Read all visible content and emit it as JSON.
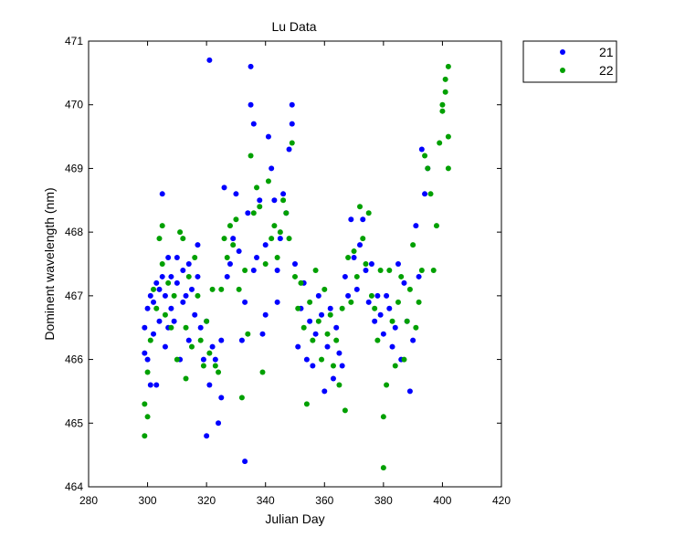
{
  "chart_data": {
    "type": "scatter",
    "title": "Lu Data",
    "xlabel": "Julian Day",
    "ylabel": "Dominent wavelength (nm)",
    "xlim": [
      280,
      420
    ],
    "ylim": [
      464,
      471
    ],
    "xticks": [
      280,
      300,
      320,
      340,
      360,
      380,
      400,
      420
    ],
    "yticks": [
      464,
      465,
      466,
      467,
      468,
      469,
      470,
      471
    ],
    "grid": false,
    "legend_position": "outside-top-right",
    "series": [
      {
        "name": "21",
        "color": "#0000ff",
        "points": [
          [
            299,
            466.1
          ],
          [
            299,
            466.5
          ],
          [
            300,
            466.8
          ],
          [
            300,
            466.0
          ],
          [
            301,
            465.6
          ],
          [
            301,
            467.0
          ],
          [
            302,
            466.9
          ],
          [
            302,
            466.4
          ],
          [
            303,
            467.2
          ],
          [
            303,
            465.6
          ],
          [
            304,
            466.6
          ],
          [
            304,
            467.1
          ],
          [
            305,
            468.6
          ],
          [
            305,
            467.3
          ],
          [
            306,
            467.0
          ],
          [
            306,
            466.2
          ],
          [
            307,
            467.6
          ],
          [
            307,
            466.5
          ],
          [
            308,
            467.3
          ],
          [
            308,
            466.8
          ],
          [
            309,
            466.6
          ],
          [
            310,
            467.6
          ],
          [
            310,
            467.2
          ],
          [
            311,
            466.0
          ],
          [
            312,
            467.4
          ],
          [
            312,
            466.9
          ],
          [
            313,
            467.0
          ],
          [
            314,
            467.5
          ],
          [
            314,
            466.3
          ],
          [
            315,
            467.1
          ],
          [
            316,
            466.7
          ],
          [
            317,
            467.8
          ],
          [
            317,
            467.3
          ],
          [
            318,
            466.5
          ],
          [
            319,
            466.0
          ],
          [
            320,
            464.8
          ],
          [
            320,
            466.6
          ],
          [
            321,
            470.7
          ],
          [
            321,
            465.6
          ],
          [
            322,
            466.2
          ],
          [
            323,
            466.0
          ],
          [
            324,
            465.0
          ],
          [
            325,
            466.3
          ],
          [
            325,
            465.4
          ],
          [
            326,
            468.7
          ],
          [
            327,
            467.3
          ],
          [
            328,
            467.5
          ],
          [
            329,
            467.9
          ],
          [
            330,
            468.6
          ],
          [
            331,
            467.7
          ],
          [
            332,
            466.3
          ],
          [
            333,
            464.4
          ],
          [
            333,
            466.9
          ],
          [
            334,
            468.3
          ],
          [
            335,
            470.6
          ],
          [
            335,
            470.0
          ],
          [
            336,
            469.7
          ],
          [
            336,
            467.4
          ],
          [
            337,
            467.6
          ],
          [
            338,
            468.5
          ],
          [
            339,
            466.4
          ],
          [
            340,
            466.7
          ],
          [
            340,
            467.8
          ],
          [
            341,
            469.5
          ],
          [
            342,
            469.0
          ],
          [
            343,
            468.5
          ],
          [
            344,
            467.4
          ],
          [
            344,
            466.9
          ],
          [
            345,
            467.9
          ],
          [
            346,
            468.6
          ],
          [
            347,
            468.3
          ],
          [
            348,
            469.3
          ],
          [
            349,
            469.7
          ],
          [
            349,
            470.0
          ],
          [
            350,
            467.5
          ],
          [
            351,
            466.2
          ],
          [
            352,
            466.8
          ],
          [
            353,
            467.2
          ],
          [
            354,
            466.0
          ],
          [
            355,
            466.6
          ],
          [
            356,
            465.9
          ],
          [
            357,
            466.4
          ],
          [
            358,
            467.0
          ],
          [
            359,
            466.7
          ],
          [
            360,
            465.5
          ],
          [
            361,
            466.2
          ],
          [
            362,
            466.8
          ],
          [
            363,
            465.7
          ],
          [
            364,
            466.5
          ],
          [
            365,
            466.1
          ],
          [
            366,
            465.9
          ],
          [
            367,
            467.3
          ],
          [
            368,
            467.0
          ],
          [
            369,
            468.2
          ],
          [
            370,
            467.6
          ],
          [
            371,
            467.1
          ],
          [
            372,
            467.8
          ],
          [
            373,
            468.2
          ],
          [
            374,
            467.4
          ],
          [
            375,
            466.9
          ],
          [
            376,
            467.5
          ],
          [
            377,
            466.6
          ],
          [
            378,
            467.0
          ],
          [
            379,
            466.7
          ],
          [
            380,
            466.4
          ],
          [
            381,
            467.0
          ],
          [
            382,
            466.8
          ],
          [
            383,
            466.2
          ],
          [
            384,
            466.5
          ],
          [
            385,
            467.5
          ],
          [
            386,
            466.0
          ],
          [
            387,
            467.2
          ],
          [
            388,
            466.6
          ],
          [
            389,
            465.5
          ],
          [
            390,
            466.3
          ],
          [
            391,
            468.1
          ],
          [
            392,
            467.3
          ],
          [
            393,
            469.3
          ],
          [
            394,
            468.6
          ],
          [
            395,
            469.0
          ]
        ]
      },
      {
        "name": "22",
        "color": "#00a000",
        "points": [
          [
            299,
            465.3
          ],
          [
            299,
            464.8
          ],
          [
            300,
            465.1
          ],
          [
            300,
            465.8
          ],
          [
            301,
            466.3
          ],
          [
            302,
            467.1
          ],
          [
            303,
            466.8
          ],
          [
            304,
            467.9
          ],
          [
            305,
            468.1
          ],
          [
            305,
            467.5
          ],
          [
            306,
            466.7
          ],
          [
            307,
            467.2
          ],
          [
            308,
            466.5
          ],
          [
            309,
            467.0
          ],
          [
            310,
            466.0
          ],
          [
            311,
            468.0
          ],
          [
            312,
            467.9
          ],
          [
            313,
            466.5
          ],
          [
            313,
            465.7
          ],
          [
            314,
            467.3
          ],
          [
            315,
            466.2
          ],
          [
            316,
            467.6
          ],
          [
            317,
            467.0
          ],
          [
            318,
            466.3
          ],
          [
            319,
            465.9
          ],
          [
            320,
            466.6
          ],
          [
            321,
            466.1
          ],
          [
            322,
            467.1
          ],
          [
            323,
            465.9
          ],
          [
            324,
            465.8
          ],
          [
            325,
            467.1
          ],
          [
            326,
            467.9
          ],
          [
            327,
            467.6
          ],
          [
            328,
            468.1
          ],
          [
            329,
            467.8
          ],
          [
            330,
            468.2
          ],
          [
            331,
            467.1
          ],
          [
            332,
            465.4
          ],
          [
            333,
            467.4
          ],
          [
            334,
            466.4
          ],
          [
            335,
            469.2
          ],
          [
            336,
            468.3
          ],
          [
            337,
            468.7
          ],
          [
            338,
            468.4
          ],
          [
            339,
            465.8
          ],
          [
            340,
            467.5
          ],
          [
            341,
            468.8
          ],
          [
            342,
            467.9
          ],
          [
            343,
            468.1
          ],
          [
            344,
            467.6
          ],
          [
            345,
            468.0
          ],
          [
            346,
            468.5
          ],
          [
            347,
            468.3
          ],
          [
            348,
            467.9
          ],
          [
            349,
            469.4
          ],
          [
            350,
            467.3
          ],
          [
            351,
            466.8
          ],
          [
            352,
            467.2
          ],
          [
            353,
            466.5
          ],
          [
            354,
            465.3
          ],
          [
            355,
            466.9
          ],
          [
            356,
            466.3
          ],
          [
            357,
            467.4
          ],
          [
            358,
            466.6
          ],
          [
            359,
            466.0
          ],
          [
            360,
            467.1
          ],
          [
            361,
            466.4
          ],
          [
            362,
            466.7
          ],
          [
            363,
            465.9
          ],
          [
            364,
            466.3
          ],
          [
            365,
            465.6
          ],
          [
            366,
            466.8
          ],
          [
            367,
            465.2
          ],
          [
            368,
            467.6
          ],
          [
            369,
            466.9
          ],
          [
            370,
            467.7
          ],
          [
            371,
            467.3
          ],
          [
            372,
            468.4
          ],
          [
            373,
            467.9
          ],
          [
            374,
            467.5
          ],
          [
            375,
            468.3
          ],
          [
            376,
            467.0
          ],
          [
            377,
            466.8
          ],
          [
            378,
            466.3
          ],
          [
            379,
            467.4
          ],
          [
            380,
            464.3
          ],
          [
            380,
            465.1
          ],
          [
            381,
            465.6
          ],
          [
            382,
            467.4
          ],
          [
            383,
            466.6
          ],
          [
            384,
            465.9
          ],
          [
            385,
            466.9
          ],
          [
            386,
            467.3
          ],
          [
            387,
            466.0
          ],
          [
            388,
            466.6
          ],
          [
            389,
            467.1
          ],
          [
            390,
            467.8
          ],
          [
            391,
            466.5
          ],
          [
            392,
            466.9
          ],
          [
            393,
            467.4
          ],
          [
            394,
            469.2
          ],
          [
            395,
            469.0
          ],
          [
            396,
            468.6
          ],
          [
            397,
            467.4
          ],
          [
            398,
            468.1
          ],
          [
            399,
            469.4
          ],
          [
            400,
            470.0
          ],
          [
            400,
            469.9
          ],
          [
            401,
            470.4
          ],
          [
            401,
            470.2
          ],
          [
            402,
            470.6
          ],
          [
            402,
            469.5
          ],
          [
            402,
            469.0
          ]
        ]
      }
    ]
  }
}
